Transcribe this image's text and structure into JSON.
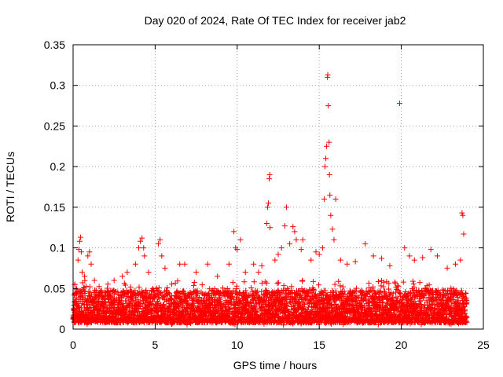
{
  "chart_data": {
    "type": "scatter",
    "title": "Day 020 of 2024, Rate Of TEC Index for receiver jab2",
    "xlabel": "GPS time / hours",
    "ylabel": "ROTI / TECUs",
    "xlim": [
      0,
      25
    ],
    "ylim": [
      0,
      0.35
    ],
    "xticks": [
      0,
      5,
      10,
      15,
      20,
      25
    ],
    "xtick_labels": [
      "0",
      "5",
      "10",
      "15",
      "20",
      "25"
    ],
    "yticks": [
      0,
      0.05,
      0.1,
      0.15,
      0.2,
      0.25,
      0.3,
      0.35
    ],
    "ytick_labels": [
      "0",
      "0.05",
      "0.1",
      "0.15",
      "0.2",
      "0.25",
      "0.3",
      "0.35"
    ],
    "grid": true,
    "marker": "+",
    "series": [
      {
        "name": "ROTI",
        "color": "#ff0000",
        "bulk": {
          "x_range": [
            0,
            24
          ],
          "typical_range": [
            0.005,
            0.06
          ]
        },
        "points": [
          [
            0.1,
            0.055
          ],
          [
            0.2,
            0.05
          ],
          [
            0.3,
            0.085
          ],
          [
            0.35,
            0.098
          ],
          [
            0.4,
            0.108
          ],
          [
            0.45,
            0.113
          ],
          [
            0.5,
            0.095
          ],
          [
            0.55,
            0.07
          ],
          [
            0.7,
            0.065
          ],
          [
            0.9,
            0.09
          ],
          [
            1.0,
            0.095
          ],
          [
            1.1,
            0.08
          ],
          [
            1.3,
            0.06
          ],
          [
            2.5,
            0.06
          ],
          [
            3.0,
            0.065
          ],
          [
            3.3,
            0.07
          ],
          [
            3.8,
            0.08
          ],
          [
            4.0,
            0.1
          ],
          [
            4.1,
            0.108
          ],
          [
            4.2,
            0.112
          ],
          [
            4.3,
            0.1
          ],
          [
            4.35,
            0.09
          ],
          [
            4.6,
            0.07
          ],
          [
            5.2,
            0.105
          ],
          [
            5.3,
            0.11
          ],
          [
            5.4,
            0.09
          ],
          [
            5.6,
            0.075
          ],
          [
            6.5,
            0.08
          ],
          [
            6.8,
            0.08
          ],
          [
            7.5,
            0.07
          ],
          [
            8.2,
            0.08
          ],
          [
            8.8,
            0.065
          ],
          [
            9.5,
            0.08
          ],
          [
            9.8,
            0.12
          ],
          [
            9.9,
            0.1
          ],
          [
            10.0,
            0.098
          ],
          [
            10.2,
            0.11
          ],
          [
            10.5,
            0.07
          ],
          [
            11.0,
            0.08
          ],
          [
            11.3,
            0.07
          ],
          [
            11.5,
            0.078
          ],
          [
            11.8,
            0.13
          ],
          [
            11.85,
            0.15
          ],
          [
            11.9,
            0.155
          ],
          [
            11.95,
            0.185
          ],
          [
            11.98,
            0.19
          ],
          [
            12.0,
            0.125
          ],
          [
            12.3,
            0.085
          ],
          [
            12.5,
            0.092
          ],
          [
            12.7,
            0.1
          ],
          [
            12.9,
            0.127
          ],
          [
            13.0,
            0.15
          ],
          [
            13.2,
            0.105
          ],
          [
            13.4,
            0.126
          ],
          [
            13.5,
            0.12
          ],
          [
            13.6,
            0.11
          ],
          [
            13.9,
            0.098
          ],
          [
            14.0,
            0.11
          ],
          [
            14.5,
            0.085
          ],
          [
            14.8,
            0.095
          ],
          [
            15.0,
            0.092
          ],
          [
            15.2,
            0.1
          ],
          [
            15.3,
            0.16
          ],
          [
            15.35,
            0.2
          ],
          [
            15.4,
            0.21
          ],
          [
            15.45,
            0.225
          ],
          [
            15.5,
            0.31
          ],
          [
            15.52,
            0.313
          ],
          [
            15.55,
            0.275
          ],
          [
            15.6,
            0.23
          ],
          [
            15.62,
            0.19
          ],
          [
            15.65,
            0.165
          ],
          [
            15.7,
            0.14
          ],
          [
            15.8,
            0.123
          ],
          [
            15.9,
            0.11
          ],
          [
            16.0,
            0.16
          ],
          [
            16.3,
            0.085
          ],
          [
            16.7,
            0.08
          ],
          [
            17.2,
            0.083
          ],
          [
            17.8,
            0.105
          ],
          [
            18.3,
            0.09
          ],
          [
            18.8,
            0.087
          ],
          [
            19.3,
            0.078
          ],
          [
            19.9,
            0.278
          ],
          [
            20.2,
            0.1
          ],
          [
            20.5,
            0.09
          ],
          [
            20.8,
            0.085
          ],
          [
            21.3,
            0.088
          ],
          [
            21.8,
            0.098
          ],
          [
            22.2,
            0.09
          ],
          [
            22.8,
            0.075
          ],
          [
            23.3,
            0.08
          ],
          [
            23.6,
            0.085
          ],
          [
            23.7,
            0.143
          ],
          [
            23.75,
            0.14
          ],
          [
            23.8,
            0.117
          ]
        ]
      }
    ]
  }
}
